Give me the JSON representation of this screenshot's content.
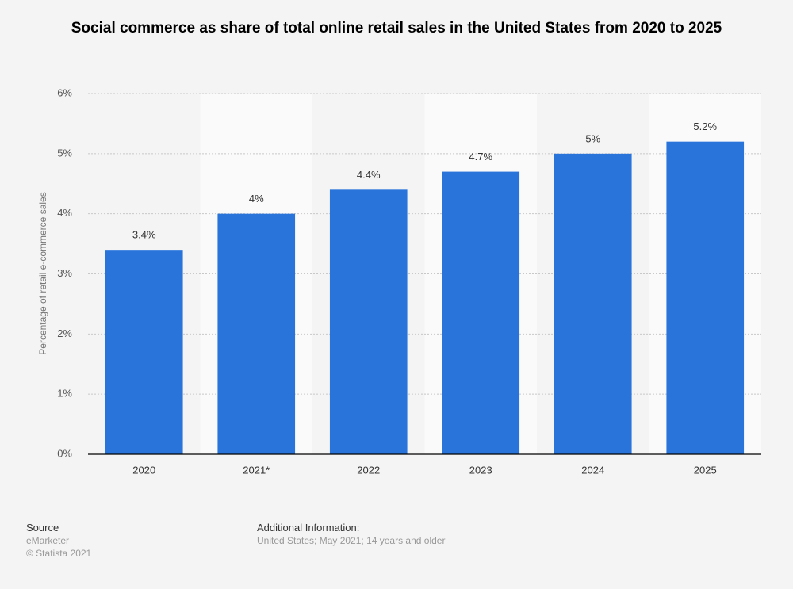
{
  "chart_data": {
    "type": "bar",
    "title": "Social commerce as share of total online retail sales in the United States from 2020 to 2025",
    "y_axis_label": "Percentage of retail e-commerce sales",
    "categories": [
      "2020",
      "2021*",
      "2022",
      "2023",
      "2024",
      "2025"
    ],
    "values": [
      3.4,
      4,
      4.4,
      4.7,
      5,
      5.2
    ],
    "value_labels": [
      "3.4%",
      "4%",
      "4.4%",
      "4.7%",
      "5%",
      "5.2%"
    ],
    "color": "#2874db",
    "ylim": [
      0,
      6
    ],
    "yticks": [
      {
        "value": 0,
        "label": "0%"
      },
      {
        "value": 1,
        "label": "1%"
      },
      {
        "value": 2,
        "label": "2%"
      },
      {
        "value": 3,
        "label": "3%"
      },
      {
        "value": 4,
        "label": "4%"
      },
      {
        "value": 5,
        "label": "5%"
      },
      {
        "value": 6,
        "label": "6%"
      }
    ],
    "grid": true
  },
  "footer": {
    "source_heading": "Source",
    "source": "eMarketer",
    "copyright": "© Statista 2021",
    "info_heading": "Additional Information:",
    "info": "United States; May 2021; 14 years and older"
  }
}
